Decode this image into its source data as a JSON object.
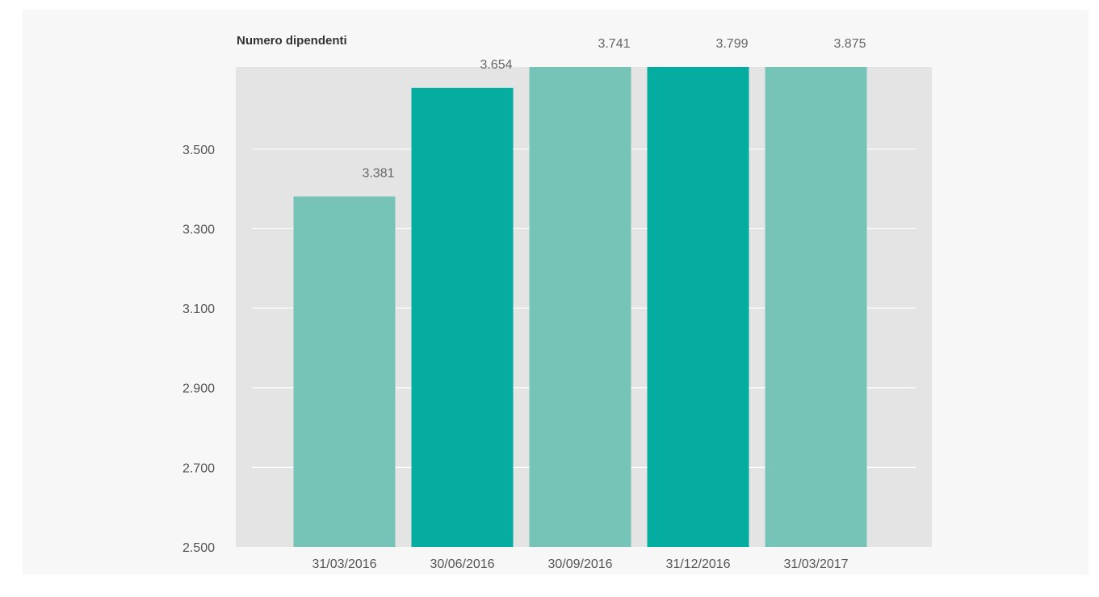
{
  "chart_data": {
    "type": "bar",
    "title": "Numero dipendenti",
    "xlabel": "",
    "ylabel": "",
    "categories": [
      "31/03/2016",
      "30/06/2016",
      "30/09/2016",
      "31/12/2016",
      "31/03/2017"
    ],
    "values": [
      3381,
      3654,
      3741,
      3799,
      3875
    ],
    "value_labels": [
      "3.381",
      "3.654",
      "3.741",
      "3.799",
      "3.875"
    ],
    "ylim": [
      2500,
      3700
    ],
    "yticks": [
      2500,
      2700,
      2900,
      3100,
      3300,
      3500
    ],
    "ytick_labels": [
      "2.500",
      "2.700",
      "2.900",
      "3.100",
      "3.300",
      "3.500"
    ],
    "grid": true,
    "legend": "none",
    "colors": [
      "#76c4b8",
      "#04ad9f",
      "#76c4b8",
      "#04ad9f",
      "#76c4b8"
    ],
    "plot_background": "#e4e4e4"
  }
}
